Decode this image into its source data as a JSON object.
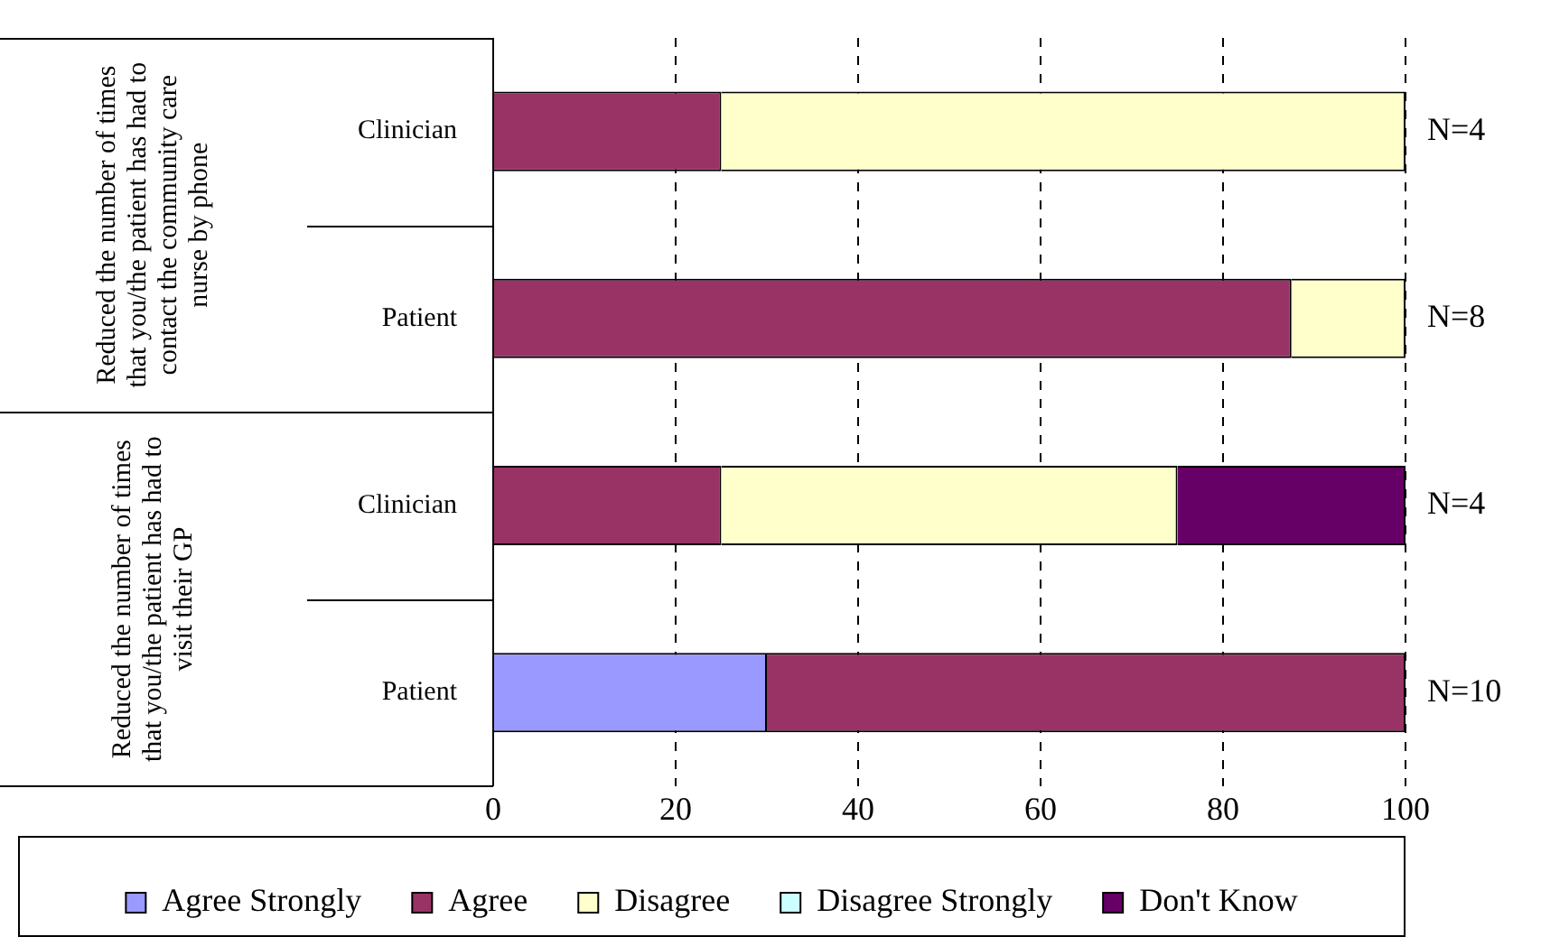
{
  "chart_data": {
    "type": "bar",
    "orientation": "horizontal",
    "stacked": true,
    "categories": [
      "Clinician",
      "Patient",
      "Clinician",
      "Patient"
    ],
    "series": [
      {
        "name": "Agree Strongly",
        "color": "#9999ff",
        "values": [
          0,
          0,
          0,
          30
        ]
      },
      {
        "name": "Agree",
        "color": "#993366",
        "values": [
          25,
          87.5,
          25,
          70
        ]
      },
      {
        "name": "Disagree",
        "color": "#ffffcc",
        "values": [
          75,
          12.5,
          50,
          0
        ]
      },
      {
        "name": "Disagree Strongly",
        "color": "#ccffff",
        "values": [
          0,
          0,
          0,
          0
        ]
      },
      {
        "name": "Don't Know",
        "color": "#660066",
        "values": [
          0,
          0,
          25,
          0
        ]
      }
    ],
    "xlim": [
      0,
      100
    ],
    "xticks": [
      0,
      20,
      40,
      60,
      80,
      100
    ],
    "grid": "x",
    "legend": "bottom",
    "annotations": [
      "Reduced the number of times that you/the patient has had to contact the community care nurse by phone",
      "Reduced the number of times that you/the patient has had to visit their GP",
      "N=4",
      "N=8",
      "N=4",
      "N=10"
    ]
  }
}
